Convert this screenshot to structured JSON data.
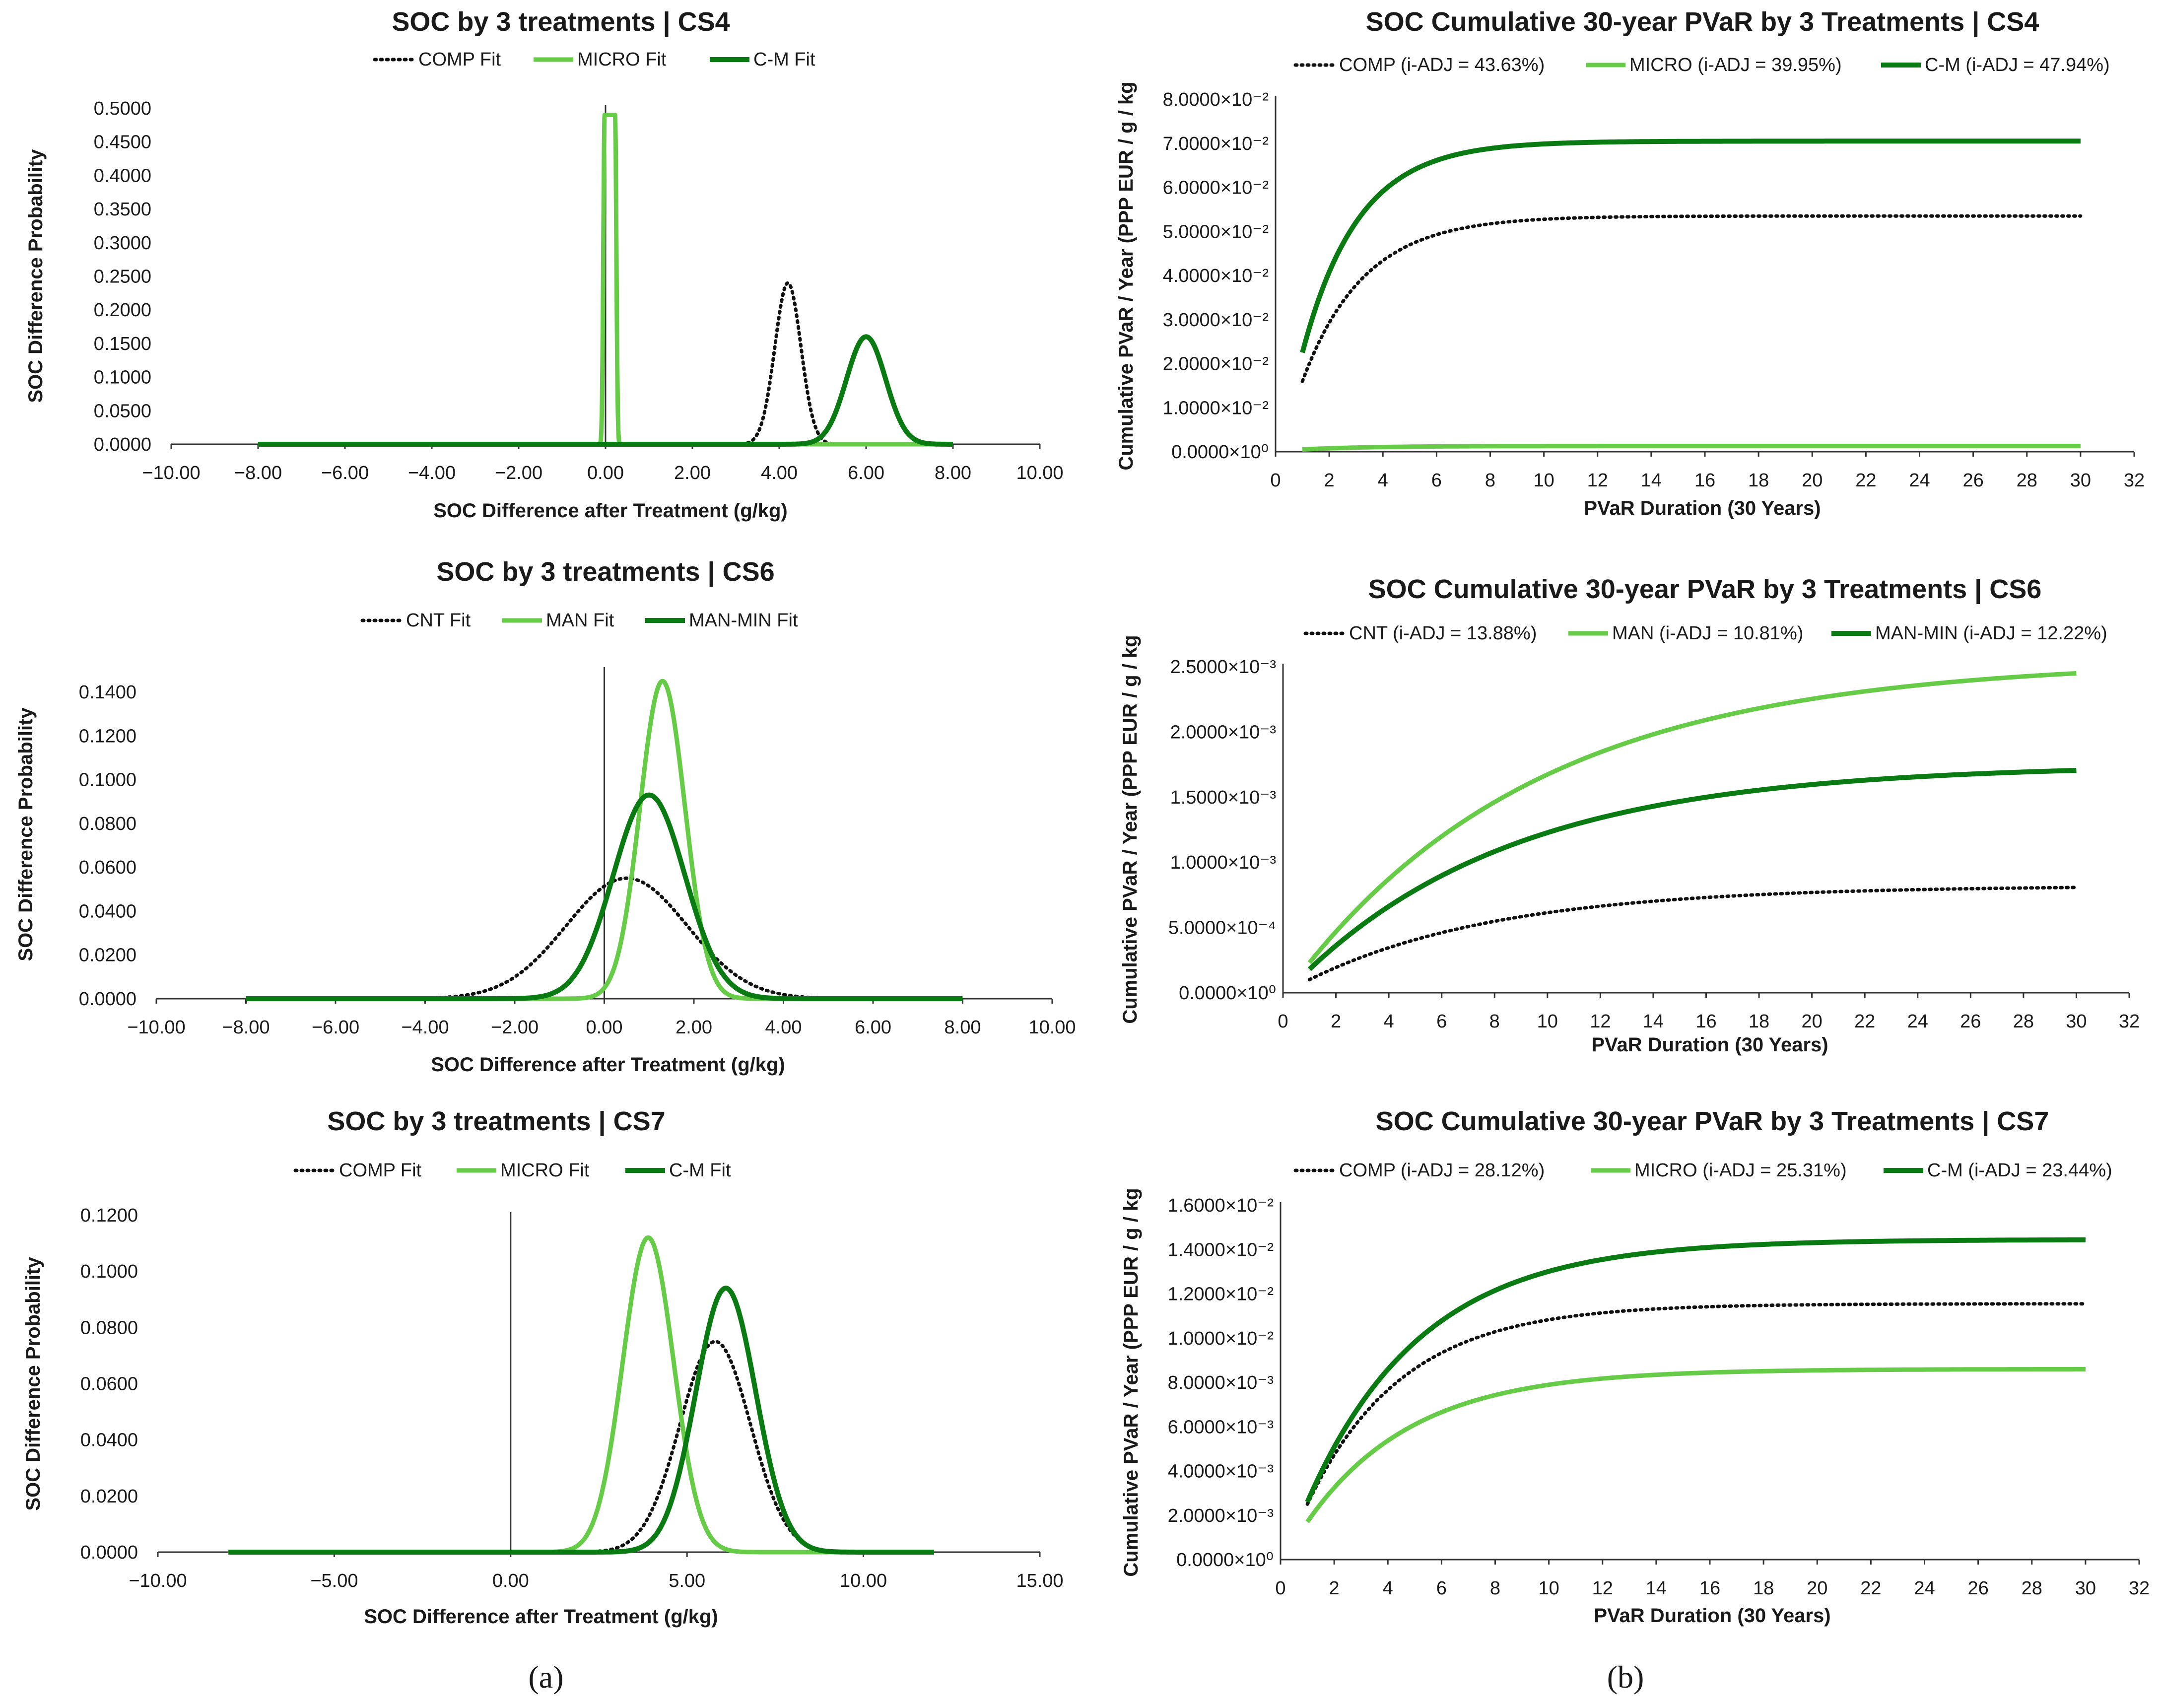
{
  "colors": {
    "dark": "#0a7a12",
    "light": "#66cc47",
    "dotted": "#111111",
    "axis": "#333333"
  },
  "panel_labels": {
    "a": "(a)",
    "b": "(b)"
  },
  "chart_data": [
    {
      "id": "a1",
      "type": "line",
      "title": "SOC by 3 treatments | CS4",
      "xlabel": "SOC Difference after Treatment (g/kg)",
      "ylabel": "SOC Difference Probability",
      "xlim": [
        -10,
        10
      ],
      "ylim": [
        0,
        0.5
      ],
      "xticks": [
        -10,
        -8,
        -6,
        -4,
        -2,
        0,
        2,
        4,
        6,
        8,
        10
      ],
      "xtick_labels": [
        "−10.00",
        "−8.00",
        "−6.00",
        "−4.00",
        "−2.00",
        "0.00",
        "2.00",
        "4.00",
        "6.00",
        "8.00",
        "10.00"
      ],
      "yticks": [
        0,
        0.05,
        0.1,
        0.15,
        0.2,
        0.25,
        0.3,
        0.35,
        0.4,
        0.45,
        0.5
      ],
      "ytick_labels": [
        "0.0000",
        "0.0500",
        "0.1000",
        "0.1500",
        "0.2000",
        "0.2500",
        "0.3000",
        "0.3500",
        "0.4000",
        "0.4500",
        "0.5000"
      ],
      "series": [
        {
          "name": "COMP Fit",
          "style": "dotted",
          "dist": "normal",
          "mean": 4.2,
          "peak": 0.24,
          "sd": 0.3,
          "x_range": [
            3.0,
            5.5
          ]
        },
        {
          "name": "MICRO Fit",
          "style": "light",
          "dist": "flat-normal",
          "mean": 0.1,
          "peak": 0.49,
          "half_width": 0.12,
          "sd": 0.03,
          "x_range": [
            -8,
            8
          ]
        },
        {
          "name": "C-M Fit",
          "style": "dark",
          "dist": "normal",
          "mean": 6.0,
          "peak": 0.16,
          "sd": 0.45,
          "x_range": [
            -8,
            8
          ]
        }
      ]
    },
    {
      "id": "b1",
      "type": "line",
      "title": "SOC Cumulative 30-year PVaR by 3 Treatments | CS4",
      "xlabel": "PVaR Duration (30 Years)",
      "ylabel": "Cumulative PVaR / Year (PPP EUR / g / kg",
      "xlim": [
        0,
        32
      ],
      "ylim": [
        0,
        0.08
      ],
      "xticks": [
        0,
        2,
        4,
        6,
        8,
        10,
        12,
        14,
        16,
        18,
        20,
        22,
        24,
        26,
        28,
        30,
        32
      ],
      "xtick_labels": [
        "0",
        "2",
        "4",
        "6",
        "8",
        "10",
        "12",
        "14",
        "16",
        "18",
        "20",
        "22",
        "24",
        "26",
        "28",
        "30",
        "32"
      ],
      "yticks": [
        0,
        0.01,
        0.02,
        0.03,
        0.04,
        0.05,
        0.06,
        0.07,
        0.08
      ],
      "ytick_labels": [
        "0.0000×10⁰",
        "1.0000×10⁻²",
        "2.0000×10⁻²",
        "3.0000×10⁻²",
        "4.0000×10⁻²",
        "5.0000×10⁻²",
        "6.0000×10⁻²",
        "7.0000×10⁻²",
        "8.0000×10⁻²"
      ],
      "series": [
        {
          "name": "COMP (i-ADJ = 43.63%)",
          "style": "dotted",
          "dist": "cumulative",
          "start": 0.016,
          "asymptote": 0.0535,
          "rate": 0.4363
        },
        {
          "name": "MICRO (i-ADJ = 39.95%)",
          "style": "light",
          "dist": "cumulative",
          "start": 0.0005,
          "asymptote": 0.0013,
          "rate": 0.3995
        },
        {
          "name": "C-M (i-ADJ = 47.94%)",
          "style": "dark",
          "dist": "cumulative",
          "start": 0.0225,
          "asymptote": 0.0705,
          "rate": 0.4794
        }
      ]
    },
    {
      "id": "a2",
      "type": "line",
      "title": "SOC by 3 treatments | CS6",
      "xlabel": "SOC Difference after Treatment (g/kg)",
      "ylabel": "SOC Difference Probability",
      "xlim": [
        -10,
        10
      ],
      "ylim": [
        0,
        0.15
      ],
      "xticks": [
        -10,
        -8,
        -6,
        -4,
        -2,
        0,
        2,
        4,
        6,
        8,
        10
      ],
      "xtick_labels": [
        "−10.00",
        "−8.00",
        "−6.00",
        "−4.00",
        "−2.00",
        "0.00",
        "2.00",
        "4.00",
        "6.00",
        "8.00",
        "10.00"
      ],
      "yticks": [
        0,
        0.02,
        0.04,
        0.06,
        0.08,
        0.1,
        0.12,
        0.14
      ],
      "ytick_labels": [
        "0.0000",
        "0.0200",
        "0.0400",
        "0.0600",
        "0.0800",
        "0.1000",
        "0.1200",
        "0.1400"
      ],
      "series": [
        {
          "name": "CNT Fit",
          "style": "dotted",
          "dist": "normal",
          "mean": 0.5,
          "peak": 0.055,
          "sd": 1.35,
          "x_range": [
            -4,
            5
          ]
        },
        {
          "name": "MAN Fit",
          "style": "light",
          "dist": "normal",
          "mean": 1.3,
          "peak": 0.145,
          "sd": 0.5,
          "x_range": [
            -8,
            8
          ]
        },
        {
          "name": "MAN-MIN Fit",
          "style": "dark",
          "dist": "normal",
          "mean": 1.0,
          "peak": 0.093,
          "sd": 0.8,
          "x_range": [
            -8,
            8
          ]
        }
      ]
    },
    {
      "id": "b2",
      "type": "line",
      "title": "SOC Cumulative 30-year PVaR by 3 Treatments | CS6",
      "xlabel": "PVaR Duration (30 Years)",
      "ylabel": "Cumulative PVaR / Year (PPP EUR / g / kg",
      "xlim": [
        0,
        32
      ],
      "ylim": [
        0,
        0.0025
      ],
      "xticks": [
        0,
        2,
        4,
        6,
        8,
        10,
        12,
        14,
        16,
        18,
        20,
        22,
        24,
        26,
        28,
        30,
        32
      ],
      "xtick_labels": [
        "0",
        "2",
        "4",
        "6",
        "8",
        "10",
        "12",
        "14",
        "16",
        "18",
        "20",
        "22",
        "24",
        "26",
        "28",
        "30",
        "32"
      ],
      "yticks": [
        0,
        0.0005,
        0.001,
        0.0015,
        0.002,
        0.0025
      ],
      "ytick_labels": [
        "0.0000×10⁰",
        "5.0000×10⁻⁴",
        "1.0000×10⁻³",
        "1.5000×10⁻³",
        "2.0000×10⁻³",
        "2.5000×10⁻³"
      ],
      "series": [
        {
          "name": "CNT (i-ADJ = 13.88%)",
          "style": "dotted",
          "dist": "cumulative",
          "start": 0.0001,
          "asymptote": 0.00082,
          "rate": 0.1388
        },
        {
          "name": "MAN (i-ADJ = 10.81%)",
          "style": "light",
          "dist": "cumulative",
          "start": 0.00023,
          "asymptote": 0.00255,
          "rate": 0.1081
        },
        {
          "name": "MAN-MIN (i-ADJ = 12.22%)",
          "style": "dark",
          "dist": "cumulative",
          "start": 0.00018,
          "asymptote": 0.00175,
          "rate": 0.1222
        }
      ]
    },
    {
      "id": "a3",
      "type": "line",
      "title": "SOC by 3 treatments | CS7",
      "xlabel": "SOC Difference after Treatment (g/kg)",
      "ylabel": "SOC Difference Probability",
      "xlim": [
        -10,
        15
      ],
      "ylim": [
        0,
        0.12
      ],
      "xticks": [
        -10,
        -5,
        0,
        5,
        10,
        15
      ],
      "xtick_labels": [
        "−10.00",
        "−5.00",
        "0.00",
        "5.00",
        "10.00",
        "15.00"
      ],
      "yticks": [
        0,
        0.02,
        0.04,
        0.06,
        0.08,
        0.1,
        0.12
      ],
      "ytick_labels": [
        "0.0000",
        "0.0200",
        "0.0400",
        "0.0600",
        "0.0800",
        "0.1000",
        "0.1200"
      ],
      "series": [
        {
          "name": "COMP Fit",
          "style": "dotted",
          "dist": "normal",
          "mean": 5.8,
          "peak": 0.075,
          "sd": 1.0,
          "x_range": [
            2,
            12
          ]
        },
        {
          "name": "MICRO Fit",
          "style": "light",
          "dist": "normal",
          "mean": 3.9,
          "peak": 0.112,
          "sd": 0.72,
          "x_range": [
            -8,
            12
          ]
        },
        {
          "name": "C-M Fit",
          "style": "dark",
          "dist": "normal",
          "mean": 6.1,
          "peak": 0.094,
          "sd": 0.85,
          "x_range": [
            -8,
            12
          ]
        }
      ]
    },
    {
      "id": "b3",
      "type": "line",
      "title": "SOC Cumulative 30-year PVaR by 3 Treatments | CS7",
      "xlabel": "PVaR Duration (30 Years)",
      "ylabel": "Cumulative PVaR / Year (PPP EUR / g / kg",
      "xlim": [
        0,
        32
      ],
      "ylim": [
        0,
        0.016
      ],
      "xticks": [
        0,
        2,
        4,
        6,
        8,
        10,
        12,
        14,
        16,
        18,
        20,
        22,
        24,
        26,
        28,
        30,
        32
      ],
      "xtick_labels": [
        "0",
        "2",
        "4",
        "6",
        "8",
        "10",
        "12",
        "14",
        "16",
        "18",
        "20",
        "22",
        "24",
        "26",
        "28",
        "30",
        "32"
      ],
      "yticks": [
        0,
        0.002,
        0.004,
        0.006,
        0.008,
        0.01,
        0.012,
        0.014,
        0.016
      ],
      "ytick_labels": [
        "0.0000×10⁰",
        "2.0000×10⁻³",
        "4.0000×10⁻³",
        "6.0000×10⁻³",
        "8.0000×10⁻³",
        "1.0000×10⁻²",
        "1.2000×10⁻²",
        "1.4000×10⁻²",
        "1.6000×10⁻²"
      ],
      "series": [
        {
          "name": "COMP (i-ADJ = 28.12%)",
          "style": "dotted",
          "dist": "cumulative",
          "start": 0.0025,
          "asymptote": 0.01155,
          "rate": 0.2812
        },
        {
          "name": "MICRO (i-ADJ = 25.31%)",
          "style": "light",
          "dist": "cumulative",
          "start": 0.0017,
          "asymptote": 0.0086,
          "rate": 0.2531
        },
        {
          "name": "C-M (i-ADJ = 23.44%)",
          "style": "dark",
          "dist": "cumulative",
          "start": 0.0026,
          "asymptote": 0.01445,
          "rate": 0.2344
        }
      ]
    }
  ]
}
